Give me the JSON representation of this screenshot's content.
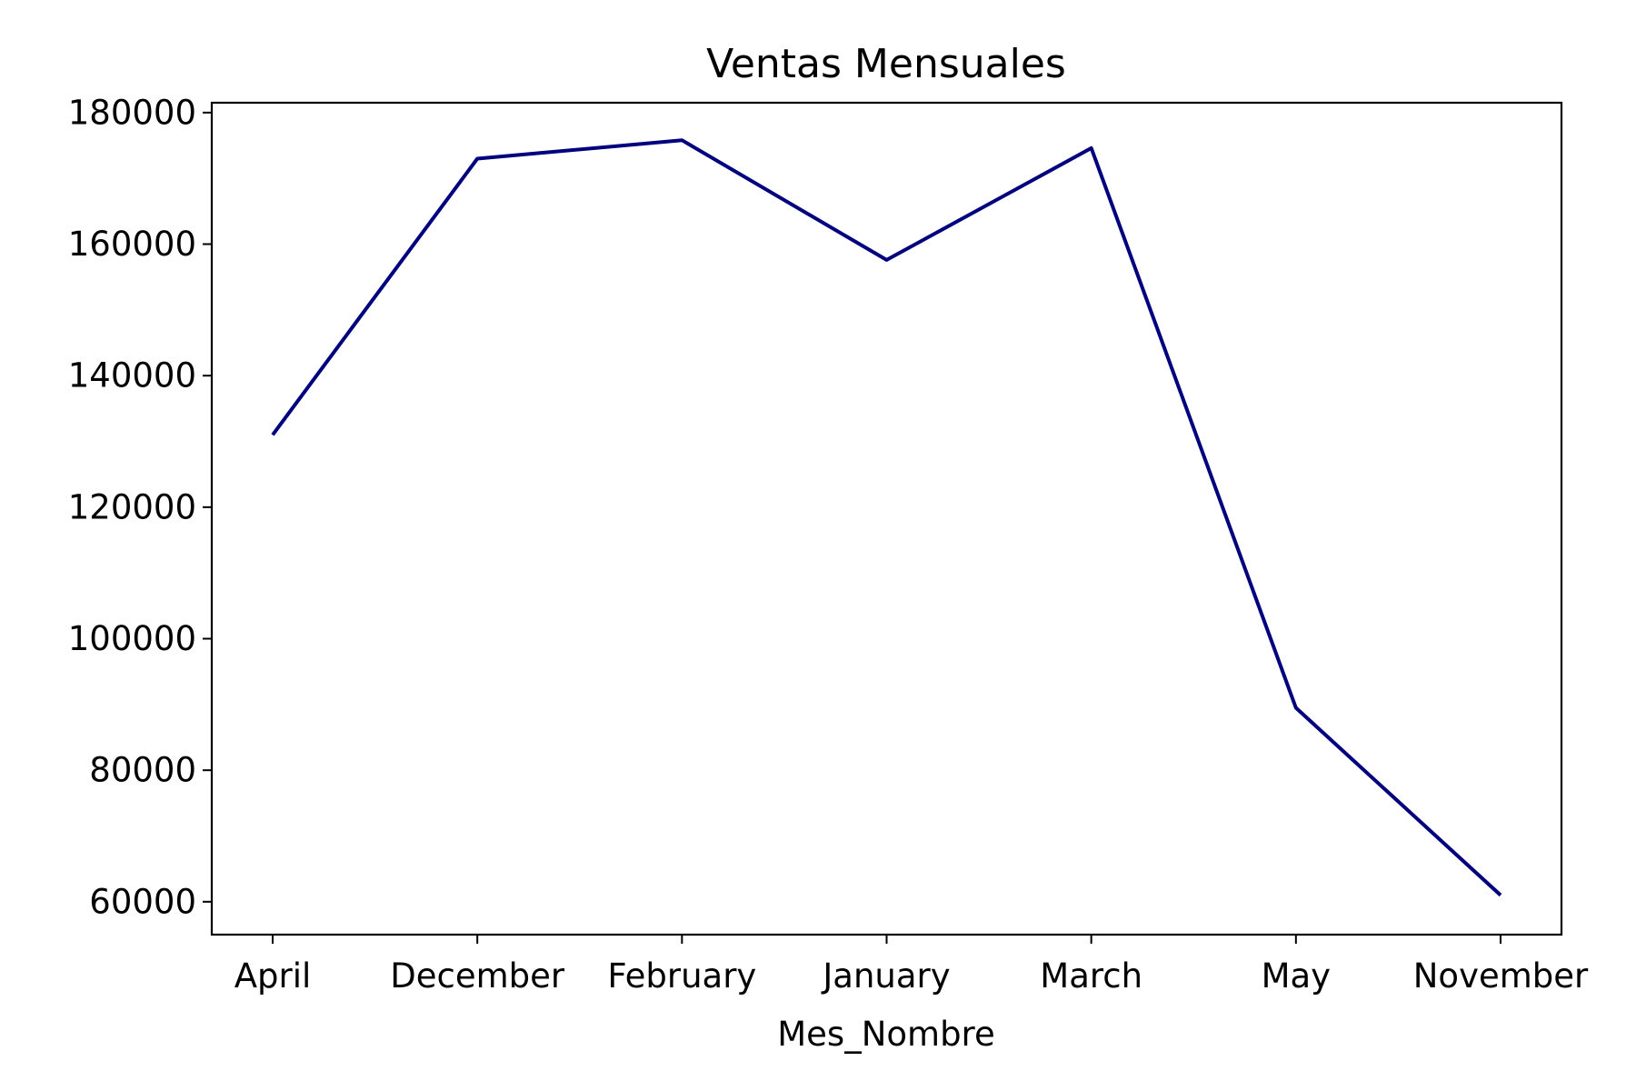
{
  "chart_data": {
    "type": "line",
    "title": "Ventas Mensuales",
    "xlabel": "Mes_Nombre",
    "ylabel": "",
    "categories": [
      "April",
      "December",
      "February",
      "January",
      "March",
      "May",
      "November"
    ],
    "series": [
      {
        "values": [
          131000,
          173000,
          175800,
          157600,
          174600,
          89500,
          61000
        ]
      }
    ],
    "ylim": [
      55000,
      181500
    ],
    "yticks": [
      "60000",
      "80000",
      "100000",
      "120000",
      "140000",
      "160000",
      "180000"
    ],
    "grid": false,
    "legend": "none",
    "line_color": "#00007f"
  }
}
